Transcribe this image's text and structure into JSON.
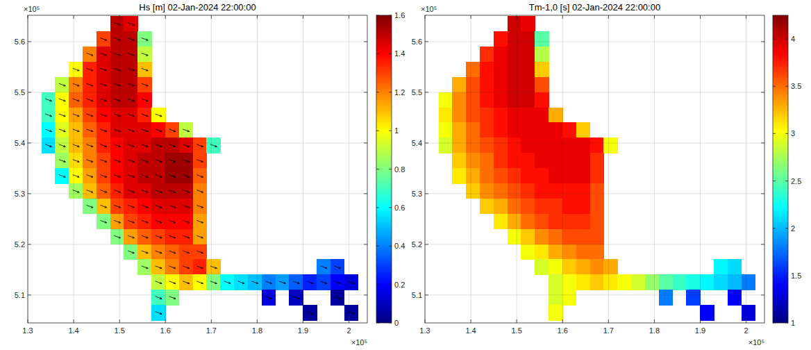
{
  "chart_data": [
    {
      "type": "heatmap",
      "title": "Hs [m] 02-Jan-2024 22:00:00",
      "x_exponent": "×10⁵",
      "y_exponent": "×10⁵",
      "xlim": [
        1.3,
        2.04
      ],
      "ylim": [
        5.045,
        5.652
      ],
      "xticks": [
        1.3,
        1.4,
        1.5,
        1.6,
        1.7,
        1.8,
        1.9,
        2
      ],
      "yticks": [
        5.1,
        5.2,
        5.3,
        5.4,
        5.5,
        5.6
      ],
      "grid": true,
      "arrow_direction": -20,
      "colorbar": {
        "lim": [
          0,
          1.6
        ],
        "ticks": [
          0,
          0.2,
          0.4,
          0.6,
          0.8,
          1,
          1.2,
          1.4,
          1.6
        ]
      },
      "x": [
        1.315,
        1.345,
        1.375,
        1.405,
        1.435,
        1.465,
        1.495,
        1.525,
        1.555,
        1.585,
        1.615,
        1.645,
        1.675,
        1.705,
        1.735,
        1.765,
        1.795,
        1.825,
        1.855,
        1.885,
        1.915,
        1.945,
        1.975,
        2.005,
        2.035
      ],
      "y": [
        5.635,
        5.605,
        5.575,
        5.545,
        5.515,
        5.485,
        5.455,
        5.425,
        5.395,
        5.365,
        5.335,
        5.305,
        5.275,
        5.245,
        5.215,
        5.185,
        5.155,
        5.125,
        5.095,
        5.065
      ],
      "cells": [
        [
          null,
          null,
          null,
          null,
          null,
          null,
          1.5,
          1.45,
          null,
          null,
          null,
          null,
          null,
          null,
          null,
          null,
          null,
          null,
          null,
          null,
          null,
          null,
          null,
          null,
          null
        ],
        [
          null,
          null,
          null,
          null,
          null,
          1.3,
          1.5,
          1.5,
          0.8,
          null,
          null,
          null,
          null,
          null,
          null,
          null,
          null,
          null,
          null,
          null,
          null,
          null,
          null,
          null,
          null
        ],
        [
          null,
          null,
          null,
          null,
          1.2,
          1.45,
          1.5,
          1.5,
          0.9,
          null,
          null,
          null,
          null,
          null,
          null,
          null,
          null,
          null,
          null,
          null,
          null,
          null,
          null,
          null,
          null
        ],
        [
          null,
          null,
          null,
          1.0,
          1.35,
          1.45,
          1.5,
          1.5,
          1.1,
          null,
          null,
          null,
          null,
          null,
          null,
          null,
          null,
          null,
          null,
          null,
          null,
          null,
          null,
          null,
          null
        ],
        [
          null,
          null,
          0.9,
          1.2,
          1.35,
          1.45,
          1.5,
          1.5,
          1.3,
          null,
          null,
          null,
          null,
          null,
          null,
          null,
          null,
          null,
          null,
          null,
          null,
          null,
          null,
          null,
          null
        ],
        [
          null,
          0.7,
          1.0,
          1.25,
          1.35,
          1.45,
          1.5,
          1.5,
          1.4,
          null,
          null,
          null,
          null,
          null,
          null,
          null,
          null,
          null,
          null,
          null,
          null,
          null,
          null,
          null,
          null
        ],
        [
          null,
          0.7,
          1.0,
          1.15,
          1.3,
          1.4,
          1.45,
          1.45,
          1.35,
          1.0,
          null,
          null,
          null,
          null,
          null,
          null,
          null,
          null,
          null,
          null,
          null,
          null,
          null,
          null,
          null
        ],
        [
          null,
          0.6,
          0.95,
          1.1,
          1.25,
          1.35,
          1.45,
          1.45,
          1.45,
          1.4,
          1.3,
          0.9,
          null,
          null,
          null,
          null,
          null,
          null,
          null,
          null,
          null,
          null,
          null,
          null,
          null
        ],
        [
          null,
          0.55,
          0.9,
          1.1,
          1.2,
          1.35,
          1.4,
          1.45,
          1.45,
          1.5,
          1.5,
          1.45,
          1.3,
          0.7,
          null,
          null,
          null,
          null,
          null,
          null,
          null,
          null,
          null,
          null,
          null
        ],
        [
          null,
          null,
          0.85,
          1.05,
          1.2,
          1.3,
          1.4,
          1.45,
          1.5,
          1.5,
          1.55,
          1.55,
          1.3,
          null,
          null,
          null,
          null,
          null,
          null,
          null,
          null,
          null,
          null,
          null,
          null
        ],
        [
          null,
          null,
          0.6,
          1.0,
          1.15,
          1.3,
          1.4,
          1.45,
          1.5,
          1.5,
          1.55,
          1.55,
          1.25,
          null,
          null,
          null,
          null,
          null,
          null,
          null,
          null,
          null,
          null,
          null,
          null
        ],
        [
          null,
          null,
          null,
          0.85,
          1.1,
          1.25,
          1.35,
          1.45,
          1.45,
          1.5,
          1.5,
          1.5,
          1.2,
          null,
          null,
          null,
          null,
          null,
          null,
          null,
          null,
          null,
          null,
          null,
          null
        ],
        [
          null,
          null,
          null,
          null,
          0.8,
          1.1,
          1.3,
          1.35,
          1.4,
          1.45,
          1.45,
          1.45,
          1.2,
          null,
          null,
          null,
          null,
          null,
          null,
          null,
          null,
          null,
          null,
          null,
          null
        ],
        [
          null,
          null,
          null,
          null,
          null,
          0.8,
          1.15,
          1.3,
          1.35,
          1.4,
          1.4,
          1.4,
          1.15,
          null,
          null,
          null,
          null,
          null,
          null,
          null,
          null,
          null,
          null,
          null,
          null
        ],
        [
          null,
          null,
          null,
          null,
          null,
          null,
          0.8,
          1.15,
          1.25,
          1.3,
          1.35,
          1.35,
          1.15,
          null,
          null,
          null,
          null,
          null,
          null,
          null,
          null,
          null,
          null,
          null,
          null
        ],
        [
          null,
          null,
          null,
          null,
          null,
          null,
          null,
          0.8,
          1.1,
          1.2,
          1.25,
          1.3,
          1.3,
          null,
          null,
          null,
          null,
          null,
          null,
          null,
          null,
          null,
          null,
          null,
          null
        ],
        [
          null,
          null,
          null,
          null,
          null,
          null,
          null,
          null,
          0.85,
          1.1,
          1.2,
          1.3,
          1.35,
          1.1,
          null,
          null,
          null,
          null,
          null,
          null,
          null,
          0.4,
          0.3,
          null,
          null
        ],
        [
          null,
          null,
          null,
          null,
          null,
          null,
          null,
          null,
          null,
          0.9,
          1.0,
          1.1,
          1.0,
          0.8,
          0.6,
          0.55,
          0.5,
          0.4,
          0.45,
          0.35,
          0.25,
          0.3,
          0.2,
          0.15,
          null
        ],
        [
          null,
          null,
          null,
          null,
          null,
          null,
          null,
          null,
          null,
          0.7,
          0.8,
          null,
          null,
          null,
          null,
          null,
          null,
          0.15,
          null,
          0.1,
          null,
          null,
          0.05,
          null,
          null
        ],
        [
          null,
          null,
          null,
          null,
          null,
          null,
          null,
          null,
          null,
          0.55,
          null,
          null,
          null,
          null,
          null,
          null,
          null,
          null,
          null,
          null,
          0.05,
          null,
          null,
          0.05,
          null
        ]
      ]
    },
    {
      "type": "heatmap",
      "title": "Tm-1,0 [s] 02-Jan-2024 22:00:00",
      "x_exponent": "×10⁵",
      "y_exponent": "×10⁵",
      "xlim": [
        1.3,
        2.04
      ],
      "ylim": [
        5.045,
        5.652
      ],
      "xticks": [
        1.3,
        1.4,
        1.5,
        1.6,
        1.7,
        1.8,
        1.9,
        2
      ],
      "yticks": [
        5.1,
        5.2,
        5.3,
        5.4,
        5.5,
        5.6
      ],
      "grid": true,
      "colorbar": {
        "lim": [
          1,
          4.25
        ],
        "ticks": [
          1,
          1.5,
          2,
          2.5,
          3,
          3.5,
          4
        ]
      },
      "x": [
        1.315,
        1.345,
        1.375,
        1.405,
        1.435,
        1.465,
        1.495,
        1.525,
        1.555,
        1.585,
        1.615,
        1.645,
        1.675,
        1.705,
        1.735,
        1.765,
        1.795,
        1.825,
        1.855,
        1.885,
        1.915,
        1.945,
        1.975,
        2.005,
        2.035
      ],
      "y": [
        5.635,
        5.605,
        5.575,
        5.545,
        5.515,
        5.485,
        5.455,
        5.425,
        5.395,
        5.365,
        5.335,
        5.305,
        5.275,
        5.245,
        5.215,
        5.185,
        5.155,
        5.125,
        5.095,
        5.065
      ],
      "cells": [
        [
          null,
          null,
          null,
          null,
          null,
          null,
          4.0,
          3.9,
          null,
          null,
          null,
          null,
          null,
          null,
          null,
          null,
          null,
          null,
          null,
          null,
          null,
          null,
          null,
          null,
          null
        ],
        [
          null,
          null,
          null,
          null,
          null,
          3.8,
          4.0,
          4.0,
          2.5,
          null,
          null,
          null,
          null,
          null,
          null,
          null,
          null,
          null,
          null,
          null,
          null,
          null,
          null,
          null,
          null
        ],
        [
          null,
          null,
          null,
          null,
          3.7,
          3.9,
          4.0,
          4.0,
          2.8,
          null,
          null,
          null,
          null,
          null,
          null,
          null,
          null,
          null,
          null,
          null,
          null,
          null,
          null,
          null,
          null
        ],
        [
          null,
          null,
          null,
          3.5,
          3.8,
          3.9,
          4.0,
          4.0,
          3.2,
          null,
          null,
          null,
          null,
          null,
          null,
          null,
          null,
          null,
          null,
          null,
          null,
          null,
          null,
          null,
          null
        ],
        [
          null,
          null,
          3.3,
          3.6,
          3.8,
          3.9,
          4.0,
          4.0,
          3.6,
          null,
          null,
          null,
          null,
          null,
          null,
          null,
          null,
          null,
          null,
          null,
          null,
          null,
          null,
          null,
          null
        ],
        [
          null,
          3.0,
          3.4,
          3.6,
          3.8,
          3.9,
          4.0,
          4.0,
          3.8,
          null,
          null,
          null,
          null,
          null,
          null,
          null,
          null,
          null,
          null,
          null,
          null,
          null,
          null,
          null,
          null
        ],
        [
          null,
          3.1,
          3.4,
          3.6,
          3.7,
          3.8,
          3.9,
          3.9,
          3.9,
          3.3,
          null,
          null,
          null,
          null,
          null,
          null,
          null,
          null,
          null,
          null,
          null,
          null,
          null,
          null,
          null
        ],
        [
          null,
          3.0,
          3.3,
          3.5,
          3.7,
          3.8,
          3.9,
          3.9,
          3.9,
          3.9,
          3.8,
          3.2,
          null,
          null,
          null,
          null,
          null,
          null,
          null,
          null,
          null,
          null,
          null,
          null,
          null
        ],
        [
          null,
          2.9,
          3.3,
          3.5,
          3.6,
          3.7,
          3.8,
          3.9,
          3.9,
          3.9,
          3.9,
          3.9,
          3.8,
          3.0,
          null,
          null,
          null,
          null,
          null,
          null,
          null,
          null,
          null,
          null,
          null
        ],
        [
          null,
          null,
          3.2,
          3.4,
          3.5,
          3.7,
          3.8,
          3.8,
          3.9,
          3.9,
          3.9,
          3.9,
          3.7,
          null,
          null,
          null,
          null,
          null,
          null,
          null,
          null,
          null,
          null,
          null,
          null
        ],
        [
          null,
          null,
          3.1,
          3.3,
          3.5,
          3.6,
          3.7,
          3.8,
          3.8,
          3.9,
          3.9,
          3.9,
          3.7,
          null,
          null,
          null,
          null,
          null,
          null,
          null,
          null,
          null,
          null,
          null,
          null
        ],
        [
          null,
          null,
          null,
          3.2,
          3.4,
          3.5,
          3.6,
          3.7,
          3.8,
          3.8,
          3.8,
          3.8,
          3.6,
          null,
          null,
          null,
          null,
          null,
          null,
          null,
          null,
          null,
          null,
          null,
          null
        ],
        [
          null,
          null,
          null,
          null,
          3.2,
          3.3,
          3.5,
          3.6,
          3.7,
          3.7,
          3.8,
          3.8,
          3.6,
          null,
          null,
          null,
          null,
          null,
          null,
          null,
          null,
          null,
          null,
          null,
          null
        ],
        [
          null,
          null,
          null,
          null,
          null,
          3.1,
          3.3,
          3.5,
          3.6,
          3.7,
          3.7,
          3.7,
          3.6,
          null,
          null,
          null,
          null,
          null,
          null,
          null,
          null,
          null,
          null,
          null,
          null
        ],
        [
          null,
          null,
          null,
          null,
          null,
          null,
          3.0,
          3.2,
          3.4,
          3.5,
          3.6,
          3.6,
          3.6,
          null,
          null,
          null,
          null,
          null,
          null,
          null,
          null,
          null,
          null,
          null,
          null
        ],
        [
          null,
          null,
          null,
          null,
          null,
          null,
          null,
          3.0,
          3.1,
          3.3,
          3.4,
          3.5,
          3.5,
          null,
          null,
          null,
          null,
          null,
          null,
          null,
          null,
          null,
          null,
          null,
          null
        ],
        [
          null,
          null,
          null,
          null,
          null,
          null,
          null,
          null,
          2.9,
          3.0,
          3.2,
          3.3,
          3.4,
          3.3,
          null,
          null,
          null,
          null,
          null,
          null,
          null,
          2.2,
          2.1,
          null,
          null
        ],
        [
          null,
          null,
          null,
          null,
          null,
          null,
          null,
          null,
          null,
          2.9,
          3.0,
          3.1,
          3.2,
          3.1,
          3.0,
          2.9,
          2.7,
          2.5,
          2.4,
          2.3,
          2.2,
          2.1,
          2.0,
          1.8,
          null
        ],
        [
          null,
          null,
          null,
          null,
          null,
          null,
          null,
          null,
          null,
          2.9,
          3.0,
          null,
          null,
          null,
          null,
          null,
          null,
          1.8,
          null,
          1.6,
          null,
          null,
          1.4,
          null,
          null
        ],
        [
          null,
          null,
          null,
          null,
          null,
          null,
          null,
          null,
          null,
          3.0,
          null,
          null,
          null,
          null,
          null,
          null,
          null,
          null,
          null,
          null,
          1.4,
          null,
          null,
          1.3,
          null
        ]
      ]
    }
  ]
}
